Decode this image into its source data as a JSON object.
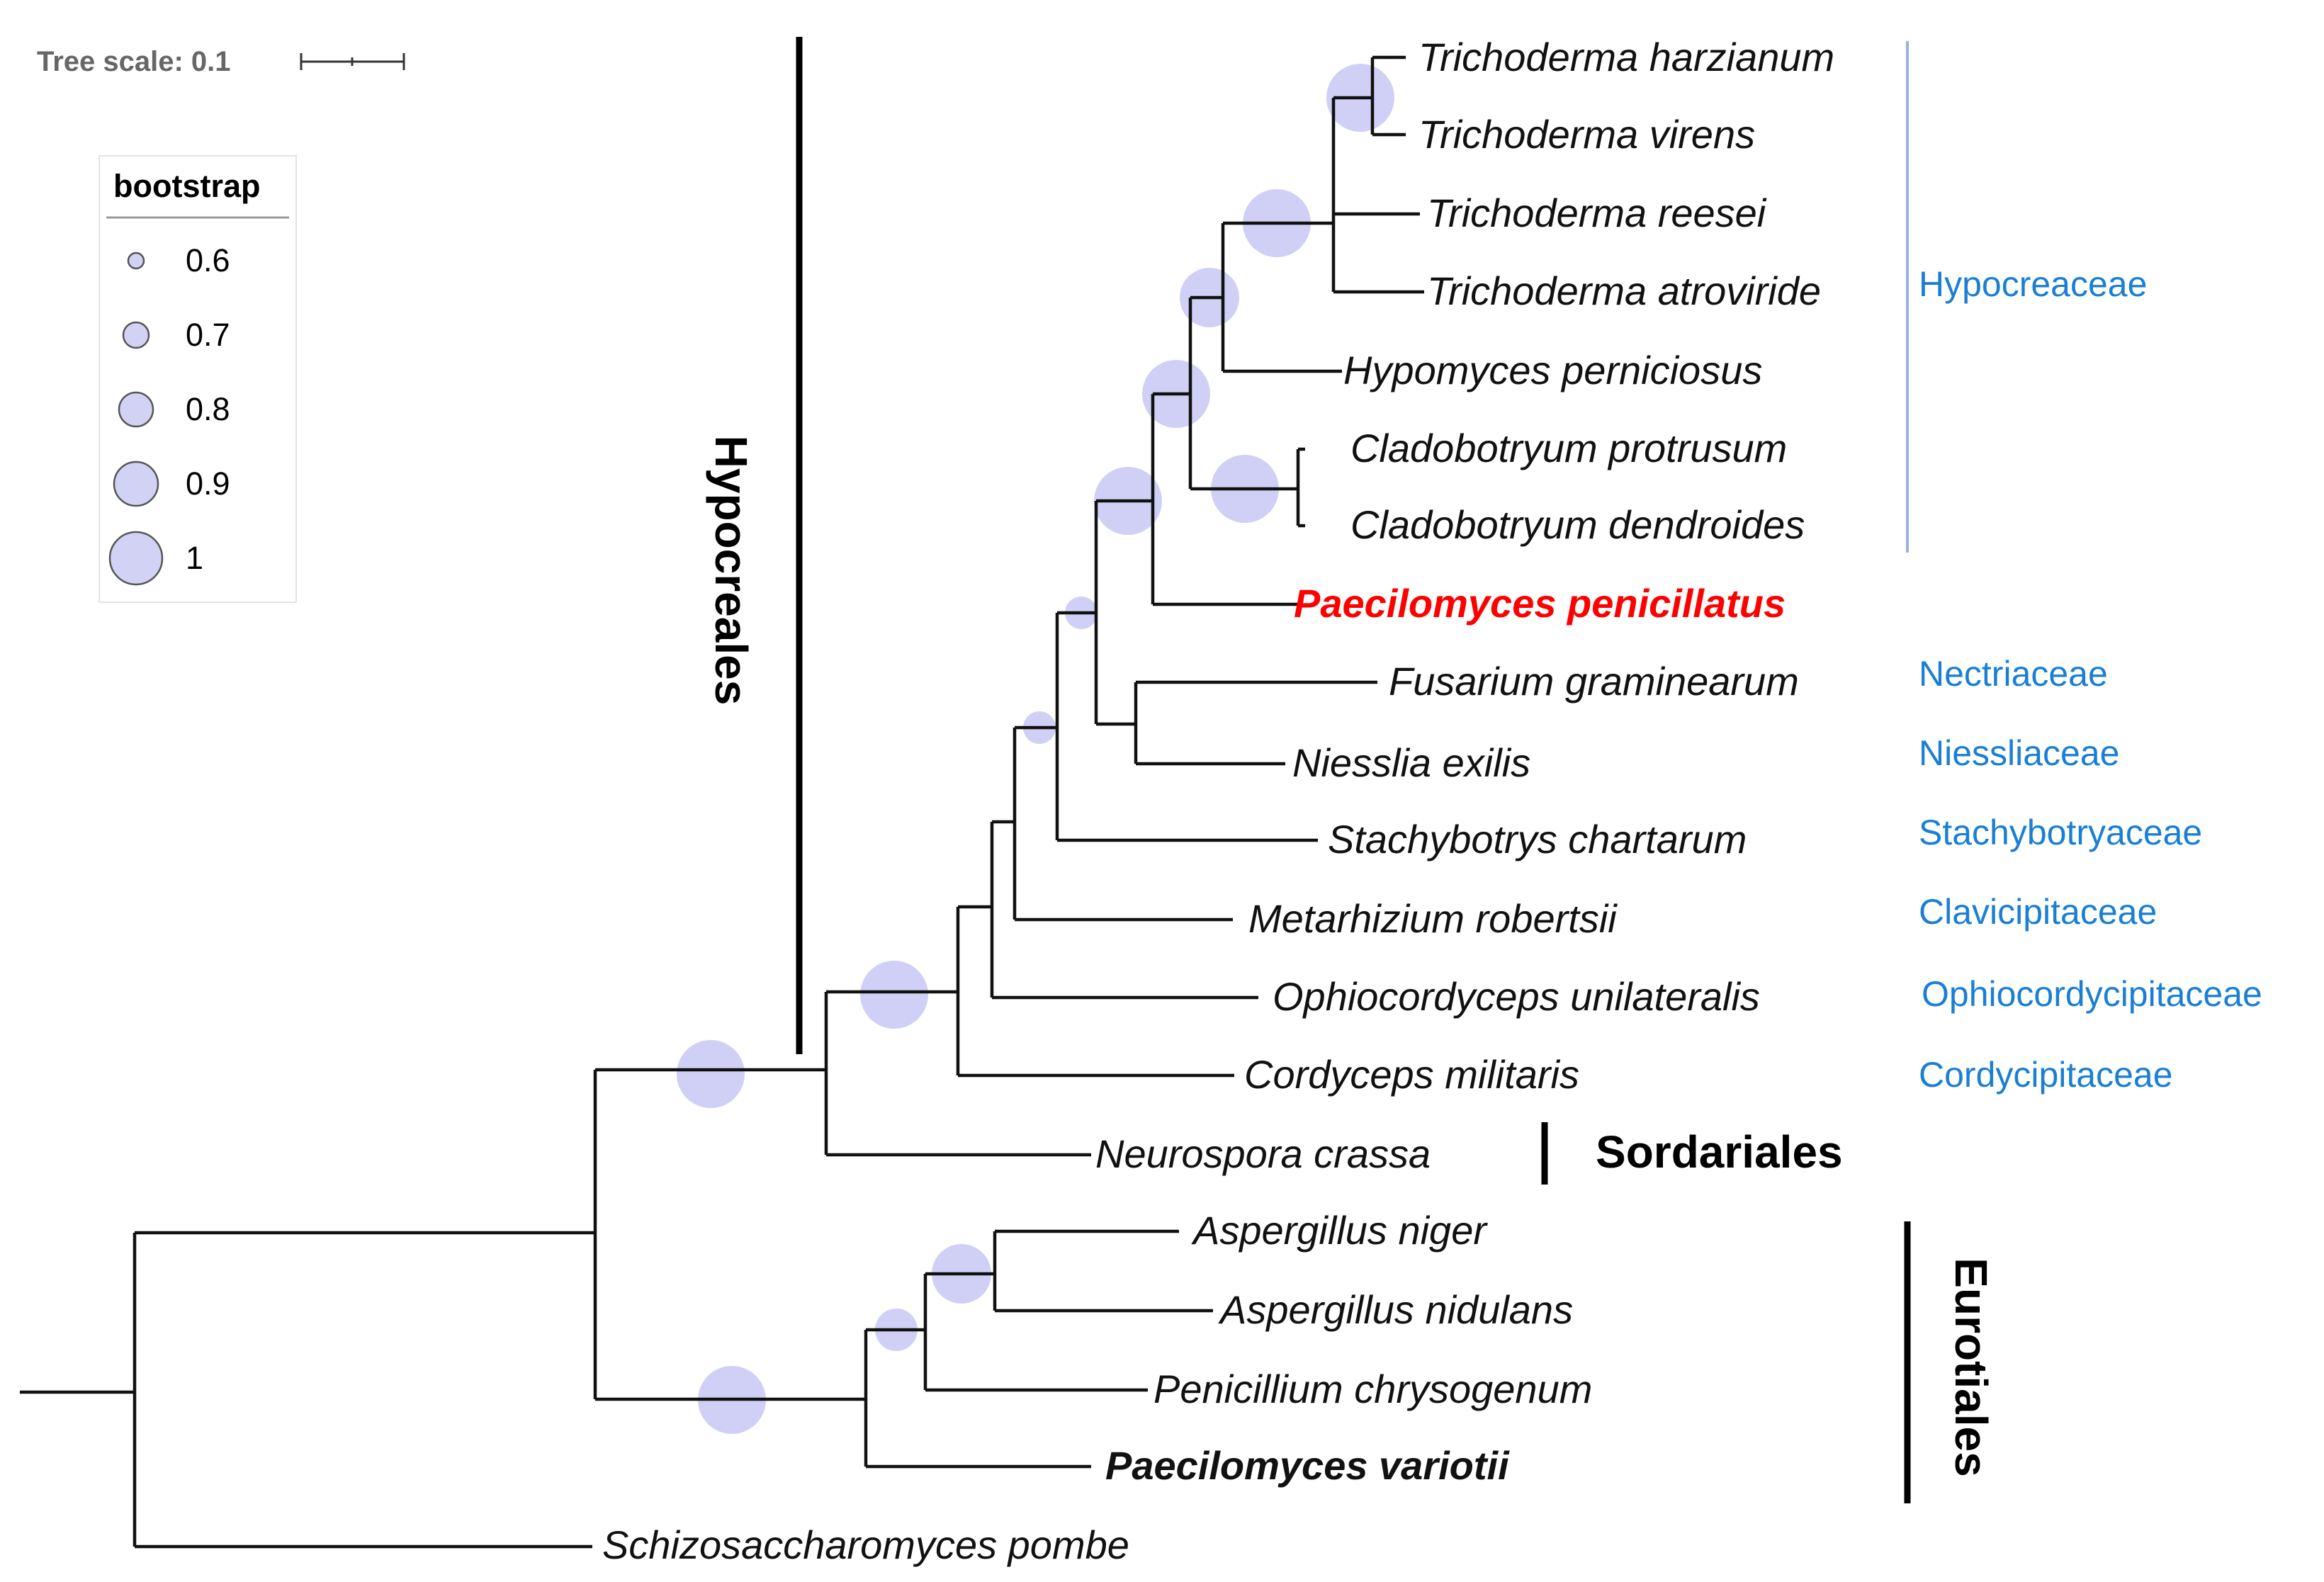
{
  "tree_scale": {
    "label": "Tree scale: 0.1"
  },
  "legend": {
    "title": "bootstrap",
    "entries": [
      {
        "label": "0.6",
        "value": 0.6
      },
      {
        "label": "0.7",
        "value": 0.7
      },
      {
        "label": "0.8",
        "value": 0.8
      },
      {
        "label": "0.9",
        "value": 0.9
      },
      {
        "label": "1",
        "value": 1.0
      }
    ]
  },
  "taxa": [
    {
      "name": "Trichoderma harzianum"
    },
    {
      "name": "Trichoderma virens"
    },
    {
      "name": "Trichoderma reesei"
    },
    {
      "name": "Trichoderma atroviride"
    },
    {
      "name": "Hypomyces perniciosus"
    },
    {
      "name": "Cladobotryum protrusum"
    },
    {
      "name": "Cladobotryum dendroides"
    },
    {
      "name": "Paecilomyces penicillatus"
    },
    {
      "name": "Fusarium graminearum"
    },
    {
      "name": "Niesslia exilis"
    },
    {
      "name": "Stachybotrys chartarum"
    },
    {
      "name": "Metarhizium robertsii"
    },
    {
      "name": "Ophiocordyceps unilateralis"
    },
    {
      "name": "Cordyceps militaris"
    },
    {
      "name": "Neurospora crassa"
    },
    {
      "name": "Aspergillus niger"
    },
    {
      "name": "Aspergillus nidulans"
    },
    {
      "name": "Penicillium chrysogenum"
    },
    {
      "name": "Paecilomyces variotii"
    },
    {
      "name": "Schizosaccharomyces pombe"
    }
  ],
  "families": [
    {
      "name": "Hypocreaceae"
    },
    {
      "name": "Nectriaceae"
    },
    {
      "name": "Niessliaceae"
    },
    {
      "name": "Stachybotryaceae"
    },
    {
      "name": "Clavicipitaceae"
    },
    {
      "name": "Ophiocordycipitaceae"
    },
    {
      "name": "Cordycipitaceae"
    }
  ],
  "orders": {
    "hypocreales": "Hypocreales",
    "sordariales": "Sordariales",
    "eurotiales": "Eurotiales"
  },
  "bootstrap_nodes": [
    {
      "node": "harzianum-virens",
      "value": 1.0
    },
    {
      "node": "trichoderma",
      "value": 1.0
    },
    {
      "node": "trichoderma-hypomyces",
      "value": 0.9
    },
    {
      "node": "cladobotryum",
      "value": 1.0
    },
    {
      "node": "hypomyces-cladobotryum",
      "value": 1.0
    },
    {
      "node": "hypocreaceae-paecilomyces",
      "value": 1.0
    },
    {
      "node": "with-fusarium-niesslia",
      "value": 0.6
    },
    {
      "node": "with-stachybotrys",
      "value": 0.6
    },
    {
      "node": "hypocreales",
      "value": 1.0
    },
    {
      "node": "sordariomycetes",
      "value": 1.0
    },
    {
      "node": "aspergillus",
      "value": 1.0
    },
    {
      "node": "aspergillus-penicillium",
      "value": 0.7
    },
    {
      "node": "eurotiales",
      "value": 1.0
    }
  ],
  "colors": {
    "branch": "#111111",
    "bootstrap_fill": "#c8c8f5",
    "family_label": "#1a7fd4",
    "family_bar": "#9aaee8",
    "highlight": "#ff0000"
  }
}
